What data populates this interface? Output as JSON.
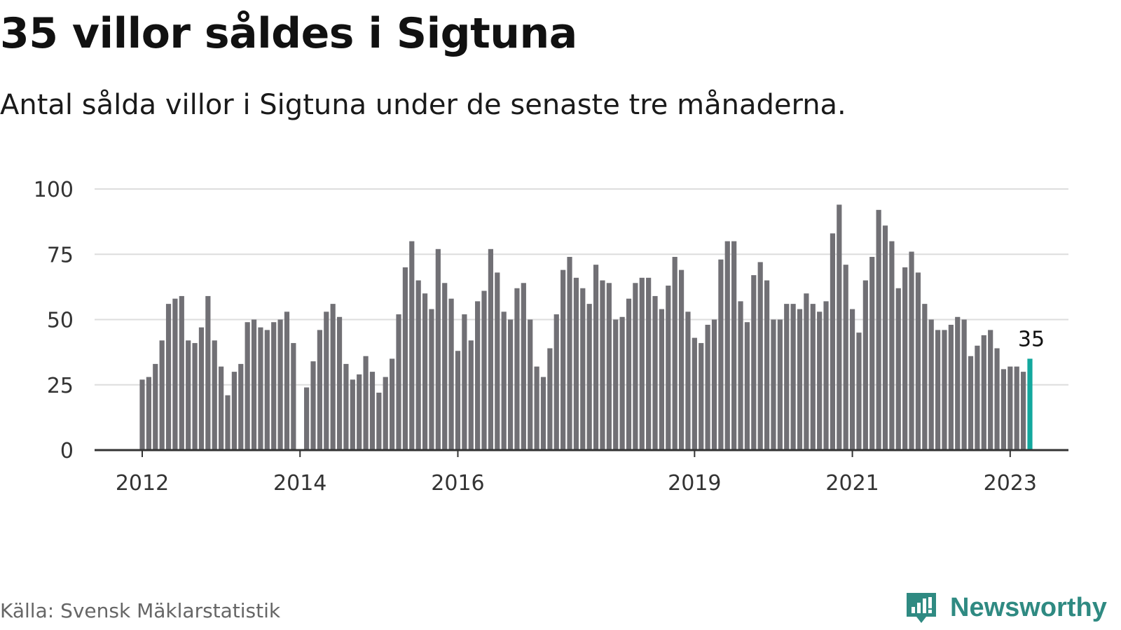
{
  "title": "35 villor såldes i Sigtuna",
  "subtitle": "Antal sålda villor i Sigtuna under de senaste tre månaderna.",
  "source": "Källa: Svensk Mäklarstatistik",
  "brand": {
    "name": "Newsworthy",
    "icon": "newsworthy-chart-icon"
  },
  "colors": {
    "bar": "#717075",
    "highlight": "#13a89e",
    "grid": "#dddddd",
    "axis": "#333333",
    "brand": "#2f8a82"
  },
  "chart_data": {
    "type": "bar",
    "title": "35 villor såldes i Sigtuna",
    "xlabel": "",
    "ylabel": "",
    "ylim": [
      0,
      100
    ],
    "yticks": [
      0,
      25,
      50,
      75,
      100
    ],
    "x_ticks": [
      {
        "label": "2012",
        "index": 0
      },
      {
        "label": "2014",
        "index": 24
      },
      {
        "label": "2016",
        "index": 48
      },
      {
        "label": "2019",
        "index": 84
      },
      {
        "label": "2021",
        "index": 108
      },
      {
        "label": "2023",
        "index": 132
      }
    ],
    "highlight_index": 135,
    "highlight_label": "35",
    "values": [
      27,
      28,
      33,
      42,
      56,
      58,
      59,
      42,
      41,
      47,
      59,
      42,
      32,
      21,
      30,
      33,
      49,
      50,
      47,
      46,
      49,
      50,
      53,
      41,
      null,
      24,
      34,
      46,
      53,
      56,
      51,
      33,
      27,
      29,
      36,
      30,
      22,
      28,
      35,
      52,
      70,
      80,
      65,
      60,
      54,
      77,
      64,
      58,
      38,
      52,
      42,
      57,
      61,
      77,
      68,
      53,
      50,
      62,
      64,
      50,
      32,
      28,
      39,
      52,
      69,
      74,
      66,
      62,
      56,
      71,
      65,
      64,
      50,
      51,
      58,
      64,
      66,
      66,
      59,
      54,
      63,
      74,
      69,
      53,
      43,
      41,
      48,
      50,
      73,
      80,
      80,
      57,
      49,
      67,
      72,
      65,
      50,
      50,
      56,
      56,
      54,
      60,
      56,
      53,
      57,
      83,
      94,
      71,
      54,
      45,
      65,
      74,
      92,
      86,
      80,
      62,
      70,
      76,
      68,
      56,
      50,
      46,
      46,
      48,
      51,
      50,
      36,
      40,
      44,
      46,
      39,
      31,
      32,
      32,
      30,
      35
    ]
  }
}
